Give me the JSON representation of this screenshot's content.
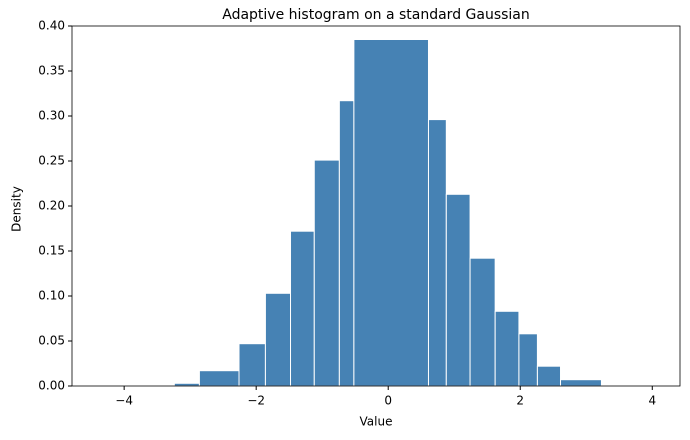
{
  "chart_data": {
    "type": "histogram",
    "title": "Adaptive histogram on a standard Gaussian",
    "x_label": "Value",
    "y_label": "Density",
    "color": "#4682b4",
    "edgecolor": "#ffffff",
    "bins": [
      -4.37,
      -3.24,
      -2.86,
      -2.26,
      -1.86,
      -1.48,
      -1.12,
      -0.74,
      -0.52,
      0.61,
      0.88,
      1.24,
      1.62,
      1.98,
      2.26,
      2.61,
      3.23,
      4.0
    ],
    "values": [
      0.0005,
      0.003,
      0.017,
      0.047,
      0.103,
      0.172,
      0.251,
      0.317,
      0.385,
      0.296,
      0.213,
      0.142,
      0.083,
      0.058,
      0.022,
      0.007,
      0.0005
    ],
    "xlim": [
      -4.79,
      4.42
    ],
    "xticks": [
      {
        "value": -4,
        "label": "−4"
      },
      {
        "value": -2,
        "label": "−2"
      },
      0,
      2,
      4
    ],
    "ylim": [
      0,
      0.4
    ],
    "yticks": [
      {
        "value": 0,
        "label": "0.00"
      },
      0.05,
      {
        "value": 0.1,
        "label": "0.10"
      },
      0.15,
      {
        "value": 0.2,
        "label": "0.20"
      },
      0.25,
      {
        "value": 0.3,
        "label": "0.30"
      },
      0.35,
      {
        "value": 0.4,
        "label": "0.40"
      }
    ]
  }
}
